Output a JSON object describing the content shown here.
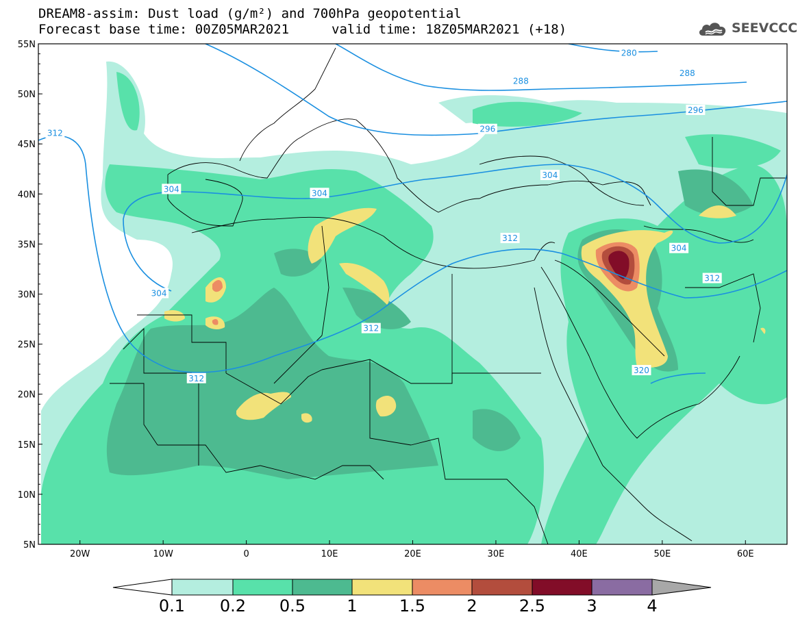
{
  "title": {
    "line1": "DREAM8-assim: Dust load (g/m²) and 700hPa geopotential",
    "base_time": "Forecast base time: 00Z05MAR2021",
    "valid_time": "valid time: 18Z05MAR2021 (+18)"
  },
  "logo": {
    "text": "SEEVCCC",
    "icon": "cloud-icon"
  },
  "map": {
    "lon_range": [
      -25,
      65
    ],
    "lat_range": [
      5,
      55
    ],
    "lat_ticks": [
      "5N",
      "10N",
      "15N",
      "20N",
      "25N",
      "30N",
      "35N",
      "40N",
      "45N",
      "50N",
      "55N"
    ],
    "lon_ticks": [
      "20W",
      "10W",
      "0",
      "10E",
      "20E",
      "30E",
      "40E",
      "50E",
      "60E"
    ],
    "contour_labels": [
      {
        "text": "280",
        "lon": 46,
        "lat": 54
      },
      {
        "text": "288",
        "lon": 33,
        "lat": 51.2
      },
      {
        "text": "288",
        "lon": 53,
        "lat": 52
      },
      {
        "text": "296",
        "lon": 54,
        "lat": 48.3
      },
      {
        "text": "296",
        "lon": 29,
        "lat": 46.4
      },
      {
        "text": "312",
        "lon": -23,
        "lat": 46
      },
      {
        "text": "304",
        "lon": -9,
        "lat": 40.4
      },
      {
        "text": "304",
        "lon": 36.5,
        "lat": 41.8
      },
      {
        "text": "304",
        "lon": 8.8,
        "lat": 40
      },
      {
        "text": "304",
        "lon": -10.5,
        "lat": 30
      },
      {
        "text": "312",
        "lon": 15,
        "lat": 26.5
      },
      {
        "text": "312",
        "lon": -6,
        "lat": 21.5
      },
      {
        "text": "312",
        "lon": 31.7,
        "lat": 35.5
      },
      {
        "text": "304",
        "lon": 52,
        "lat": 34.5
      },
      {
        "text": "312",
        "lon": 56,
        "lat": 31.5
      },
      {
        "text": "320",
        "lon": 47.5,
        "lat": 22.3
      }
    ]
  },
  "colors": {
    "c01": "#b4eedf",
    "c02": "#58e1aa",
    "c05": "#4dba90",
    "c1": "#f2e27a",
    "c15": "#ec8c64",
    "c2": "#b34d3d",
    "c25": "#820d28",
    "c3": "#8a6ca2",
    "c4": "#a8a8a8",
    "contour": "#1a8fe0"
  },
  "legend": {
    "labels": [
      "0.1",
      "0.2",
      "0.5",
      "1",
      "1.5",
      "2",
      "2.5",
      "3",
      "4"
    ]
  }
}
